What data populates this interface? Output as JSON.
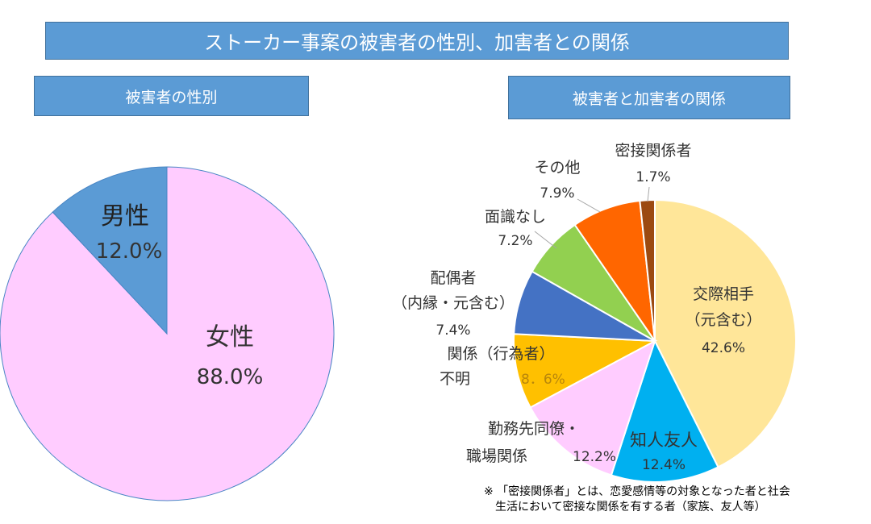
{
  "title": "ストーカー事案の被害者の性別、加害者との関係",
  "left_header": "被害者の性別",
  "right_header": "被害者と加害者の関係",
  "footnote": {
    "line1": "※ 「密接関係者」とは、恋愛感情等の対象となった者と社会",
    "line2": "生活において密接な関係を有する者（家族、友人等）"
  },
  "chart_data": [
    {
      "type": "pie",
      "title": "被害者の性別",
      "slices": [
        {
          "label": "女性",
          "value": 88.0,
          "value_text": "88.0%",
          "color": "#ffccff"
        },
        {
          "label": "男性",
          "value": 12.0,
          "value_text": "12.0%",
          "color": "#5b9bd5"
        }
      ]
    },
    {
      "type": "pie",
      "title": "被害者と加害者の関係",
      "slices": [
        {
          "label_lines": [
            "交際相手",
            "（元含む）"
          ],
          "value": 42.6,
          "value_text": "42.6%",
          "color": "#ffe699"
        },
        {
          "label_lines": [
            "知人友人"
          ],
          "value": 12.4,
          "value_text": "12.4%",
          "color": "#00b0f0"
        },
        {
          "label_lines": [
            "勤務先同僚・",
            "職場関係"
          ],
          "value": 12.2,
          "value_text": "12.2%",
          "color": "#ffccff"
        },
        {
          "label_lines": [
            "関係（行為者）",
            "不明"
          ],
          "value": 8.6,
          "value_text": "8．6%",
          "color": "#ffc000"
        },
        {
          "label_lines": [
            "配偶者",
            "（内縁・元含む）"
          ],
          "value": 7.4,
          "value_text": "7.4%",
          "color": "#4472c4"
        },
        {
          "label_lines": [
            "面識なし"
          ],
          "value": 7.2,
          "value_text": "7.2%",
          "color": "#92d050"
        },
        {
          "label_lines": [
            "その他"
          ],
          "value": 7.9,
          "value_text": "7.9%",
          "color": "#ff6600"
        },
        {
          "label_lines": [
            "密接関係者"
          ],
          "value": 1.7,
          "value_text": "1.7%",
          "color": "#9c4a11"
        }
      ]
    }
  ]
}
